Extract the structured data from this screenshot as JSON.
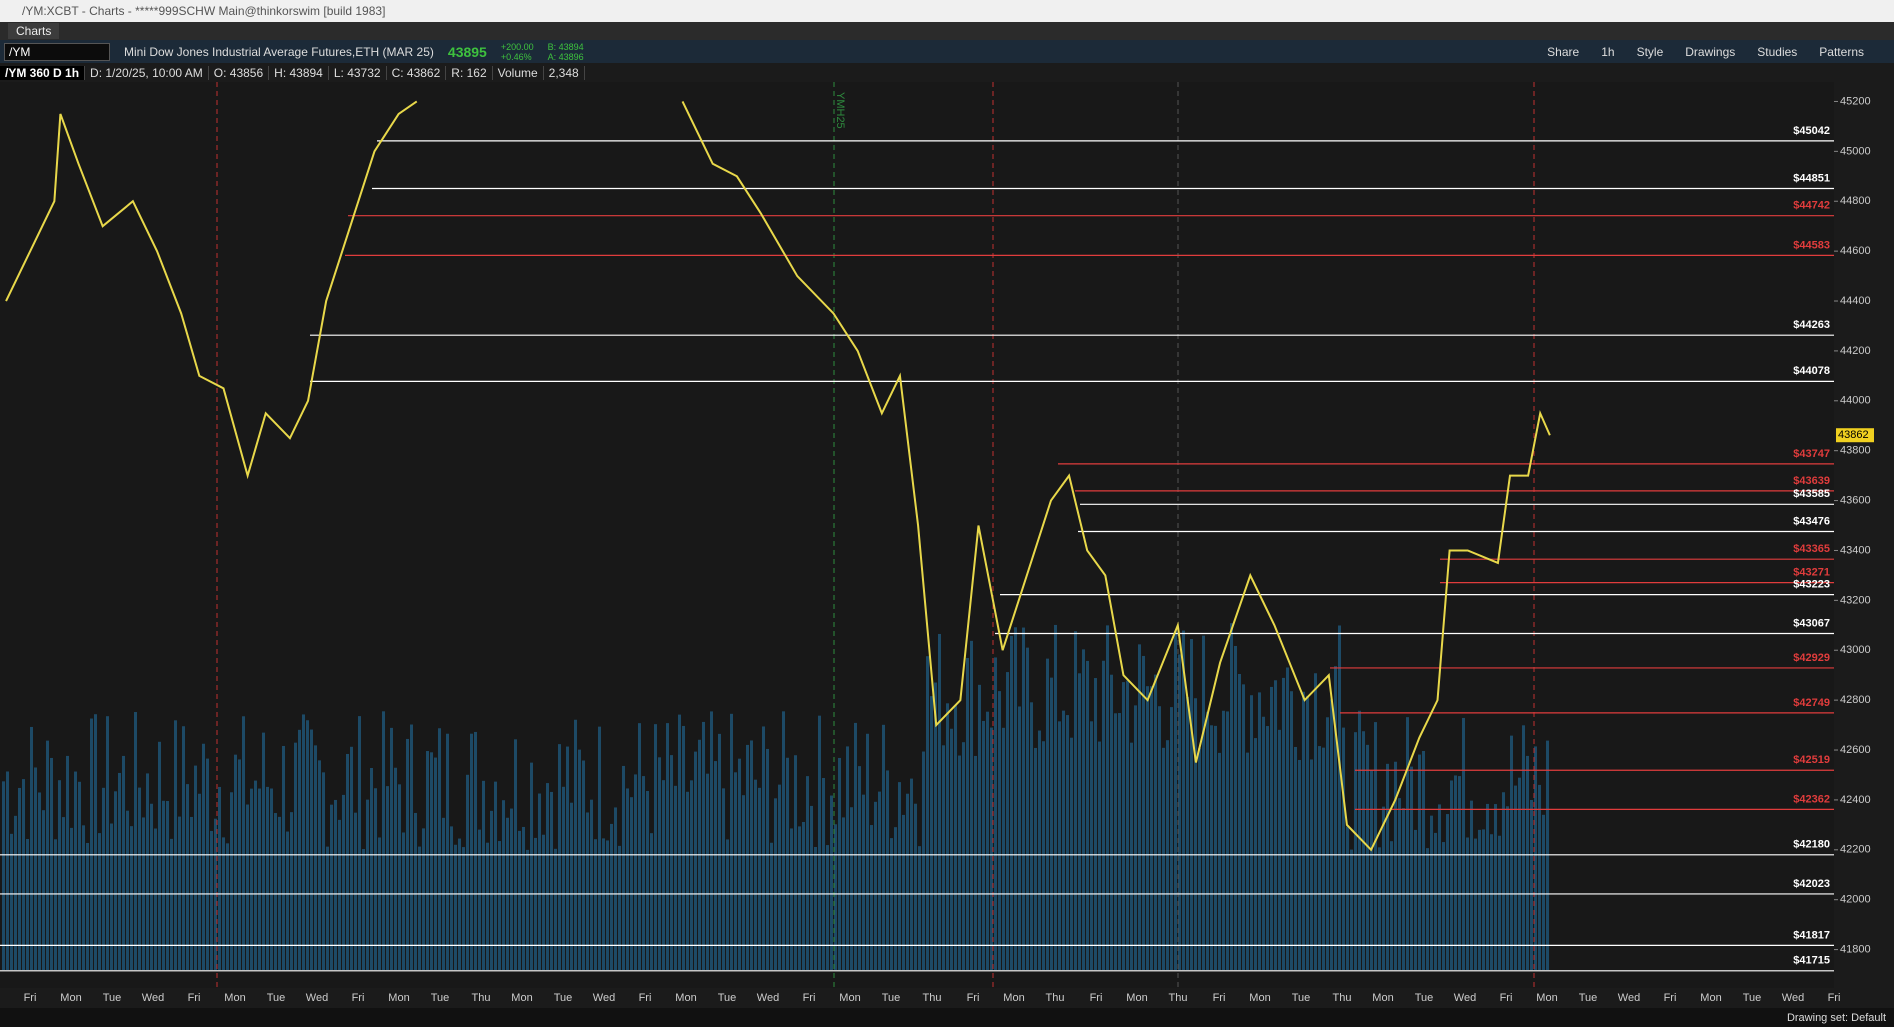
{
  "window": {
    "title": "/YM:XCBT - Charts - *****999SCHW Main@thinkorswim [build 1983]"
  },
  "tab": "Charts",
  "toolbar": {
    "symbol": "/YM",
    "description": "Mini Dow Jones Industrial Average Futures,ETH (MAR 25)",
    "last": "43895",
    "change": "+200.00",
    "change_pct": "+0.46%",
    "bid": "B: 43894",
    "ask": "A: 43896",
    "buttons": [
      "Share",
      "1h",
      "Style",
      "Drawings",
      "Studies",
      "Patterns"
    ]
  },
  "info": {
    "chart_spec": "/YM 360 D 1h",
    "date": "D: 1/20/25, 10:00 AM",
    "open": "O: 43856",
    "high": "H: 43894",
    "low": "L: 43732",
    "close": "C: 43862",
    "range": "R: 162",
    "volume_label": "Volume",
    "volume": "2,348"
  },
  "chart": {
    "ylim": [
      41646,
      45278
    ],
    "yticks": [
      41800,
      42000,
      42200,
      42400,
      42600,
      42800,
      43000,
      43200,
      43400,
      43600,
      43800,
      44000,
      44200,
      44400,
      44600,
      44800,
      45000,
      45200
    ],
    "price_label": 43862,
    "contract_marker": "YMH25",
    "levels": [
      {
        "value": 45042,
        "label": "$45042",
        "color": "#ffffff"
      },
      {
        "value": 44851,
        "label": "$44851",
        "color": "#ffffff"
      },
      {
        "value": 44742,
        "label": "$44742",
        "color": "#e03c3c"
      },
      {
        "value": 44583,
        "label": "$44583",
        "color": "#e03c3c"
      },
      {
        "value": 44263,
        "label": "$44263",
        "color": "#ffffff"
      },
      {
        "value": 44078,
        "label": "$44078",
        "color": "#ffffff"
      },
      {
        "value": 43747,
        "label": "$43747",
        "color": "#e03c3c"
      },
      {
        "value": 43639,
        "label": "$43639",
        "color": "#e03c3c"
      },
      {
        "value": 43585,
        "label": "$43585",
        "color": "#ffffff"
      },
      {
        "value": 43476,
        "label": "$43476",
        "color": "#ffffff"
      },
      {
        "value": 43365,
        "label": "$43365",
        "color": "#e03c3c"
      },
      {
        "value": 43271,
        "label": "$43271",
        "color": "#e03c3c"
      },
      {
        "value": 43223,
        "label": "$43223",
        "color": "#ffffff"
      },
      {
        "value": 43067,
        "label": "$43067",
        "color": "#ffffff"
      },
      {
        "value": 42929,
        "label": "$42929",
        "color": "#e03c3c"
      },
      {
        "value": 42749,
        "label": "$42749",
        "color": "#e03c3c"
      },
      {
        "value": 42519,
        "label": "$42519",
        "color": "#e03c3c"
      },
      {
        "value": 42362,
        "label": "$42362",
        "color": "#e03c3c"
      },
      {
        "value": 42180,
        "label": "$42180",
        "color": "#ffffff"
      },
      {
        "value": 42023,
        "label": "$42023",
        "color": "#ffffff"
      },
      {
        "value": 41817,
        "label": "$41817",
        "color": "#ffffff"
      },
      {
        "value": 41715,
        "label": "$41715",
        "color": "#ffffff"
      }
    ],
    "days": [
      "Fri",
      "Mon",
      "Tue",
      "Wed",
      "Fri",
      "Mon",
      "Tue",
      "Wed",
      "Fri",
      "Mon",
      "Tue",
      "Thu",
      "Mon",
      "Tue",
      "Wed",
      "Fri",
      "Mon",
      "Tue",
      "Wed",
      "Fri",
      "Mon",
      "Tue",
      "Thu",
      "Fri",
      "Mon",
      "Thu",
      "Fri",
      "Mon",
      "Thu",
      "Fri",
      "Mon",
      "Tue",
      "Thu",
      "Mon",
      "Tue",
      "Wed",
      "Fri",
      "Mon",
      "Tue",
      "Wed",
      "Fri",
      "Mon",
      "Tue",
      "Wed",
      "Fri"
    ],
    "price": [
      44400,
      44600,
      44800,
      45150,
      44950,
      44700,
      44800,
      44600,
      44350,
      44100,
      44050,
      43700,
      43950,
      43850,
      44000,
      44400,
      44700,
      45000,
      45150,
      45200,
      null,
      45200,
      44950,
      44900,
      44750,
      44500,
      44350,
      44200,
      43950,
      44100,
      43500,
      42700,
      42800,
      43500,
      43000,
      43300,
      43600,
      43700,
      43400,
      43300,
      42900,
      42800,
      43100,
      42550,
      42950,
      43300,
      43100,
      42800,
      42900,
      42300,
      42200,
      42400,
      42650,
      42800,
      43400,
      43400,
      43350,
      43700,
      43700,
      43950,
      43862
    ]
  },
  "footer": {
    "drawing_set": "Drawing set: Default"
  }
}
